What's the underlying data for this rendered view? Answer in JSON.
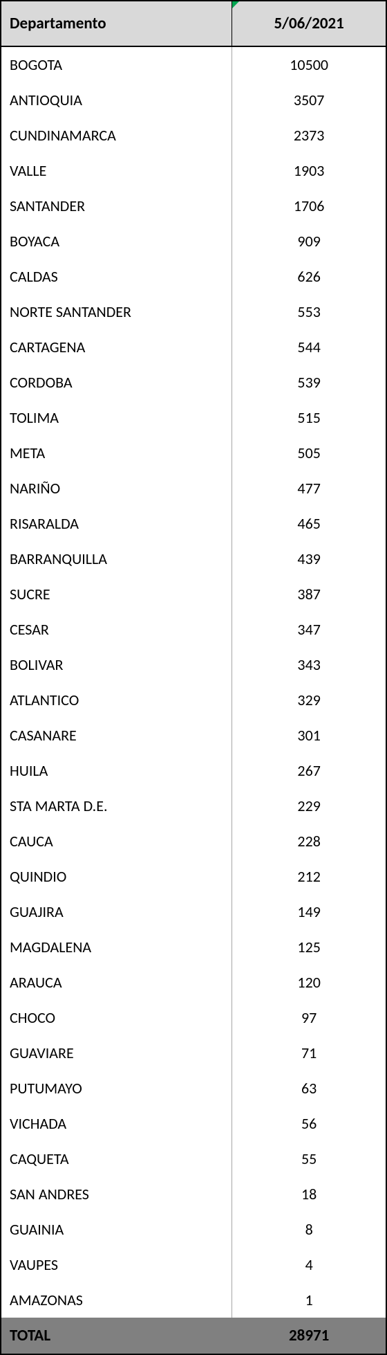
{
  "table": {
    "type": "table",
    "columns": [
      {
        "key": "dept",
        "label": "Departamento",
        "align": "left",
        "width_pct": 60
      },
      {
        "key": "value",
        "label": "5/06/2021",
        "align": "center",
        "width_pct": 40
      }
    ],
    "header_bg": "#d9d9d9",
    "header_font_size": 23,
    "body_font_size": 22,
    "border_color": "#000000",
    "inner_vline_color": "#a6a6a6",
    "total_row_bg": "#808080",
    "excel_marker_color": "#00a651",
    "rows": [
      {
        "dept": "BOGOTA",
        "value": 10500
      },
      {
        "dept": "ANTIOQUIA",
        "value": 3507
      },
      {
        "dept": "CUNDINAMARCA",
        "value": 2373
      },
      {
        "dept": "VALLE",
        "value": 1903
      },
      {
        "dept": "SANTANDER",
        "value": 1706
      },
      {
        "dept": "BOYACA",
        "value": 909
      },
      {
        "dept": "CALDAS",
        "value": 626
      },
      {
        "dept": "NORTE SANTANDER",
        "value": 553
      },
      {
        "dept": "CARTAGENA",
        "value": 544
      },
      {
        "dept": "CORDOBA",
        "value": 539
      },
      {
        "dept": "TOLIMA",
        "value": 515
      },
      {
        "dept": "META",
        "value": 505
      },
      {
        "dept": "NARIÑO",
        "value": 477
      },
      {
        "dept": "RISARALDA",
        "value": 465
      },
      {
        "dept": "BARRANQUILLA",
        "value": 439
      },
      {
        "dept": "SUCRE",
        "value": 387
      },
      {
        "dept": "CESAR",
        "value": 347
      },
      {
        "dept": "BOLIVAR",
        "value": 343
      },
      {
        "dept": "ATLANTICO",
        "value": 329
      },
      {
        "dept": "CASANARE",
        "value": 301
      },
      {
        "dept": "HUILA",
        "value": 267
      },
      {
        "dept": "STA MARTA D.E.",
        "value": 229
      },
      {
        "dept": "CAUCA",
        "value": 228
      },
      {
        "dept": "QUINDIO",
        "value": 212
      },
      {
        "dept": "GUAJIRA",
        "value": 149
      },
      {
        "dept": "MAGDALENA",
        "value": 125
      },
      {
        "dept": "ARAUCA",
        "value": 120
      },
      {
        "dept": "CHOCO",
        "value": 97
      },
      {
        "dept": "GUAVIARE",
        "value": 71
      },
      {
        "dept": "PUTUMAYO",
        "value": 63
      },
      {
        "dept": "VICHADA",
        "value": 56
      },
      {
        "dept": "CAQUETA",
        "value": 55
      },
      {
        "dept": "SAN ANDRES",
        "value": 18
      },
      {
        "dept": "GUAINIA",
        "value": 8
      },
      {
        "dept": "VAUPES",
        "value": 4
      },
      {
        "dept": "AMAZONAS",
        "value": 1
      }
    ],
    "total": {
      "label": "TOTAL",
      "value": 28971
    }
  }
}
